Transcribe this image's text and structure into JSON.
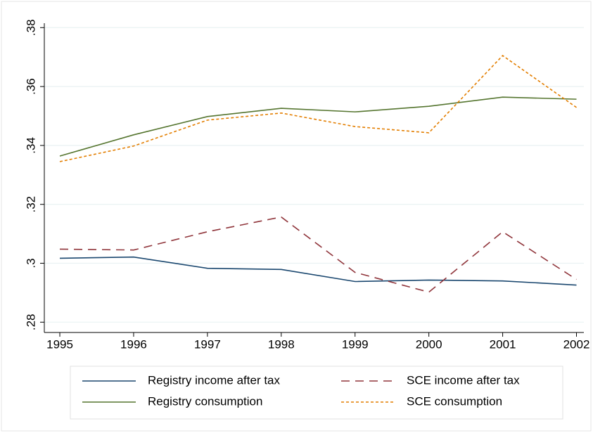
{
  "chart_data": {
    "type": "line",
    "x": [
      1995,
      1996,
      1997,
      1998,
      1999,
      2000,
      2001,
      2002
    ],
    "series": [
      {
        "name": "Registry income after tax",
        "color": "#1a476f",
        "dash": "solid",
        "values": [
          0.3017,
          0.3021,
          0.2983,
          0.2979,
          0.2938,
          0.2943,
          0.294,
          0.2926
        ]
      },
      {
        "name": "SCE income after tax",
        "color": "#90353b",
        "dash": "dashed",
        "values": [
          0.3048,
          0.3045,
          0.3107,
          0.3157,
          0.2969,
          0.2902,
          0.3107,
          0.2945
        ]
      },
      {
        "name": "Registry consumption",
        "color": "#55752f",
        "dash": "solid",
        "values": [
          0.3364,
          0.3436,
          0.3498,
          0.3526,
          0.3514,
          0.3533,
          0.3564,
          0.3557
        ]
      },
      {
        "name": "SCE consumption",
        "color": "#e37e00",
        "dash": "dotted",
        "values": [
          0.3345,
          0.3398,
          0.3486,
          0.351,
          0.3464,
          0.3443,
          0.3705,
          0.3529
        ]
      }
    ],
    "xlim": [
      1994.79,
      2002.1
    ],
    "xticks": [
      1995,
      1996,
      1997,
      1998,
      1999,
      2000,
      2001,
      2002
    ],
    "ylim": [
      0.2765,
      0.3815
    ],
    "yticks": [
      {
        "value": 0.28,
        "label": ".28"
      },
      {
        "value": 0.3,
        "label": ".3"
      },
      {
        "value": 0.32,
        "label": ".32"
      },
      {
        "value": 0.34,
        "label": ".34"
      },
      {
        "value": 0.36,
        "label": ".36"
      },
      {
        "value": 0.38,
        "label": ".38"
      }
    ],
    "grid": true
  }
}
